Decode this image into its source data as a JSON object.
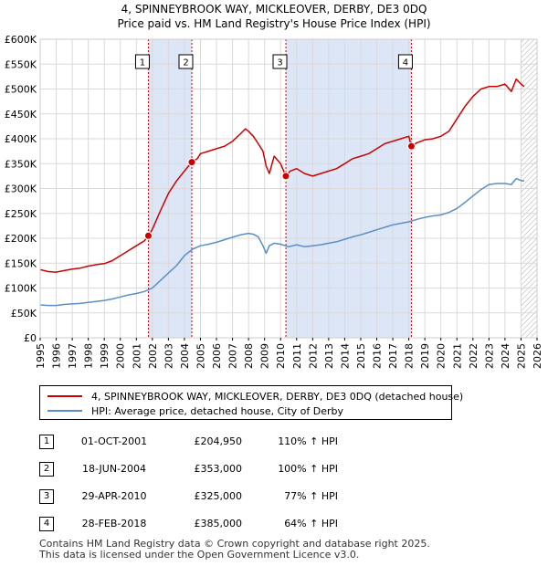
{
  "titles": {
    "line1": "4, SPINNEYBROOK WAY, MICKLEOVER, DERBY, DE3 0DQ",
    "line2": "Price paid vs. HM Land Registry's House Price Index (HPI)"
  },
  "colors": {
    "property": "#cc0000",
    "hpi": "#5b8ec6",
    "shade": "#dde6f7",
    "marker_line": "#cc0000",
    "grid": "#d9d9d9"
  },
  "legend": {
    "property": "4, SPINNEYBROOK WAY, MICKLEOVER, DERBY, DE3 0DQ (detached house)",
    "hpi": "HPI: Average price, detached house, City of Derby"
  },
  "sales": [
    {
      "num": "1",
      "date": "01-OCT-2001",
      "price": "£204,950",
      "hpi": "110% ↑ HPI"
    },
    {
      "num": "2",
      "date": "18-JUN-2004",
      "price": "£353,000",
      "hpi": "100% ↑ HPI"
    },
    {
      "num": "3",
      "date": "29-APR-2010",
      "price": "£325,000",
      "hpi": "77% ↑ HPI"
    },
    {
      "num": "4",
      "date": "28-FEB-2018",
      "price": "£385,000",
      "hpi": "64% ↑ HPI"
    }
  ],
  "footer": {
    "line1": "Contains HM Land Registry data © Crown copyright and database right 2025.",
    "line2": "This data is licensed under the Open Government Licence v3.0."
  },
  "chart_data": {
    "type": "line",
    "title": "4, SPINNEYBROOK WAY, MICKLEOVER, DERBY, DE3 0DQ",
    "subtitle": "Price paid vs. HM Land Registry's House Price Index (HPI)",
    "xlabel": "",
    "ylabel": "",
    "xlim": [
      1995,
      2026
    ],
    "ylim": [
      0,
      600000
    ],
    "grid": true,
    "y_ticks": [
      0,
      50000,
      100000,
      150000,
      200000,
      250000,
      300000,
      350000,
      400000,
      450000,
      500000,
      550000,
      600000
    ],
    "y_tick_labels": [
      "£0",
      "£50K",
      "£100K",
      "£150K",
      "£200K",
      "£250K",
      "£300K",
      "£350K",
      "£400K",
      "£450K",
      "£500K",
      "£550K",
      "£600K"
    ],
    "x_ticks": [
      1995,
      1996,
      1997,
      1998,
      1999,
      2000,
      2001,
      2002,
      2003,
      2004,
      2005,
      2006,
      2007,
      2008,
      2009,
      2010,
      2011,
      2012,
      2013,
      2014,
      2015,
      2016,
      2017,
      2018,
      2019,
      2020,
      2021,
      2022,
      2023,
      2024,
      2025,
      2026
    ],
    "x_tick_labels": [
      "1995",
      "1996",
      "1997",
      "1998",
      "1999",
      "2000",
      "2001",
      "2002",
      "2003",
      "2004",
      "2005",
      "2006",
      "2007",
      "2008",
      "2009",
      "2010",
      "2011",
      "2012",
      "2013",
      "2014",
      "2015",
      "2016",
      "2017",
      "2018",
      "2019",
      "2020",
      "2021",
      "2022",
      "2023",
      "2024",
      "2025",
      "2026"
    ],
    "shaded_ranges": [
      [
        2001.75,
        2004.46
      ],
      [
        2010.33,
        2018.16
      ]
    ],
    "hatch_from": 2025.0,
    "series": [
      {
        "name": "4, SPINNEYBROOK WAY, MICKLEOVER, DERBY, DE3 0DQ (detached house)",
        "color": "#cc0000",
        "x": [
          1995.0,
          1995.5,
          1996.0,
          1996.5,
          1997.0,
          1997.5,
          1998.0,
          1998.5,
          1999.0,
          1999.5,
          2000.0,
          2000.5,
          2001.0,
          2001.5,
          2001.75,
          2002.0,
          2002.5,
          2003.0,
          2003.5,
          2004.0,
          2004.46,
          2004.8,
          2005.0,
          2005.5,
          2006.0,
          2006.5,
          2007.0,
          2007.5,
          2007.8,
          2008.0,
          2008.3,
          2008.6,
          2008.9,
          2009.1,
          2009.3,
          2009.6,
          2010.0,
          2010.33,
          2010.6,
          2011.0,
          2011.5,
          2012.0,
          2012.5,
          2013.0,
          2013.5,
          2014.0,
          2014.5,
          2015.0,
          2015.5,
          2016.0,
          2016.5,
          2017.0,
          2017.5,
          2018.0,
          2018.16,
          2018.5,
          2019.0,
          2019.5,
          2020.0,
          2020.5,
          2021.0,
          2021.5,
          2022.0,
          2022.5,
          2023.0,
          2023.5,
          2024.0,
          2024.4,
          2024.7,
          2025.0,
          2025.2
        ],
        "values": [
          137000,
          133000,
          132000,
          135000,
          138000,
          140000,
          144000,
          147000,
          149000,
          155000,
          165000,
          175000,
          185000,
          195000,
          204950,
          218000,
          255000,
          290000,
          315000,
          335000,
          353000,
          360000,
          370000,
          375000,
          380000,
          385000,
          395000,
          410000,
          420000,
          415000,
          405000,
          390000,
          375000,
          345000,
          330000,
          365000,
          350000,
          325000,
          335000,
          340000,
          330000,
          325000,
          330000,
          335000,
          340000,
          350000,
          360000,
          365000,
          370000,
          380000,
          390000,
          395000,
          400000,
          405000,
          385000,
          392000,
          398000,
          400000,
          405000,
          415000,
          440000,
          465000,
          485000,
          500000,
          505000,
          505000,
          510000,
          495000,
          520000,
          510000,
          505000
        ]
      },
      {
        "name": "HPI: Average price, detached house, City of Derby",
        "color": "#5b8ec6",
        "x": [
          1995.0,
          1995.5,
          1996.0,
          1996.5,
          1997.0,
          1997.5,
          1998.0,
          1998.5,
          1999.0,
          1999.5,
          2000.0,
          2000.5,
          2001.0,
          2001.5,
          2002.0,
          2002.5,
          2003.0,
          2003.5,
          2004.0,
          2004.5,
          2005.0,
          2005.5,
          2006.0,
          2006.5,
          2007.0,
          2007.5,
          2008.0,
          2008.3,
          2008.6,
          2008.9,
          2009.1,
          2009.3,
          2009.6,
          2010.0,
          2010.5,
          2011.0,
          2011.5,
          2012.0,
          2012.5,
          2013.0,
          2013.5,
          2014.0,
          2014.5,
          2015.0,
          2015.5,
          2016.0,
          2016.5,
          2017.0,
          2017.5,
          2018.0,
          2018.5,
          2019.0,
          2019.5,
          2020.0,
          2020.5,
          2021.0,
          2021.5,
          2022.0,
          2022.5,
          2023.0,
          2023.5,
          2024.0,
          2024.4,
          2024.7,
          2025.0,
          2025.2
        ],
        "values": [
          66000,
          65000,
          65000,
          67000,
          68000,
          69000,
          71000,
          73000,
          75000,
          78000,
          82000,
          86000,
          89000,
          93000,
          100000,
          115000,
          130000,
          145000,
          165000,
          178000,
          185000,
          188000,
          192000,
          197000,
          202000,
          207000,
          210000,
          208000,
          203000,
          185000,
          170000,
          185000,
          190000,
          188000,
          183000,
          187000,
          183000,
          185000,
          187000,
          190000,
          193000,
          198000,
          203000,
          207000,
          212000,
          217000,
          222000,
          227000,
          230000,
          233000,
          238000,
          242000,
          245000,
          247000,
          252000,
          260000,
          272000,
          285000,
          298000,
          308000,
          310000,
          310000,
          308000,
          320000,
          316000,
          315000
        ]
      }
    ],
    "annotations": [
      {
        "label": "1",
        "x": 2001.75,
        "y": 204950
      },
      {
        "label": "2",
        "x": 2004.46,
        "y": 353000
      },
      {
        "label": "3",
        "x": 2010.33,
        "y": 325000
      },
      {
        "label": "4",
        "x": 2018.16,
        "y": 385000
      }
    ]
  }
}
